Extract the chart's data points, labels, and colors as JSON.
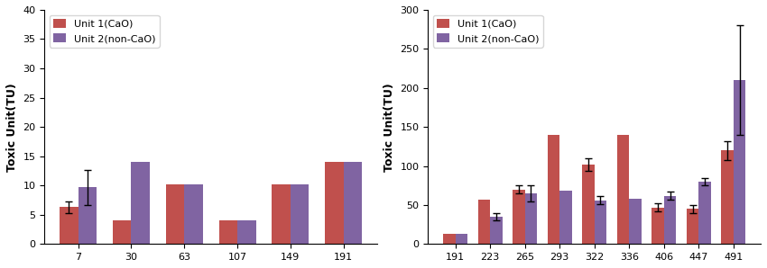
{
  "left": {
    "categories": [
      7,
      30,
      63,
      107,
      149,
      191
    ],
    "unit1_values": [
      6.3,
      4.0,
      10.2,
      4.0,
      10.2,
      14.0
    ],
    "unit2_values": [
      9.7,
      14.0,
      10.2,
      4.0,
      10.2,
      14.0
    ],
    "unit1_errors": [
      1.0,
      0,
      0,
      0,
      0,
      0
    ],
    "unit2_errors": [
      3.0,
      0,
      0,
      0,
      0,
      0
    ],
    "ylabel": "Toxic Unit(TU)",
    "ylim": [
      0,
      40
    ],
    "yticks": [
      0,
      5,
      10,
      15,
      20,
      25,
      30,
      35,
      40
    ]
  },
  "right": {
    "categories": [
      191,
      223,
      265,
      293,
      322,
      336,
      406,
      447,
      491
    ],
    "unit1_values": [
      13,
      57,
      70,
      140,
      102,
      140,
      47,
      45,
      120
    ],
    "unit2_values": [
      13,
      35,
      65,
      68,
      56,
      58,
      62,
      80,
      210
    ],
    "unit1_errors": [
      0,
      0,
      5,
      0,
      8,
      0,
      5,
      5,
      12
    ],
    "unit2_errors": [
      0,
      5,
      10,
      0,
      5,
      0,
      5,
      5,
      70
    ],
    "ylabel": "Toxic Unit(TU)",
    "ylim": [
      0,
      300
    ],
    "yticks": [
      0,
      50,
      100,
      150,
      200,
      250,
      300
    ]
  },
  "bar_width": 0.35,
  "unit1_color": "#C0504D",
  "unit2_color": "#8064A2",
  "legend_labels": [
    "Unit 1(CaO)",
    "Unit 2(non-CaO)"
  ],
  "figsize": [
    8.5,
    2.98
  ],
  "dpi": 100
}
